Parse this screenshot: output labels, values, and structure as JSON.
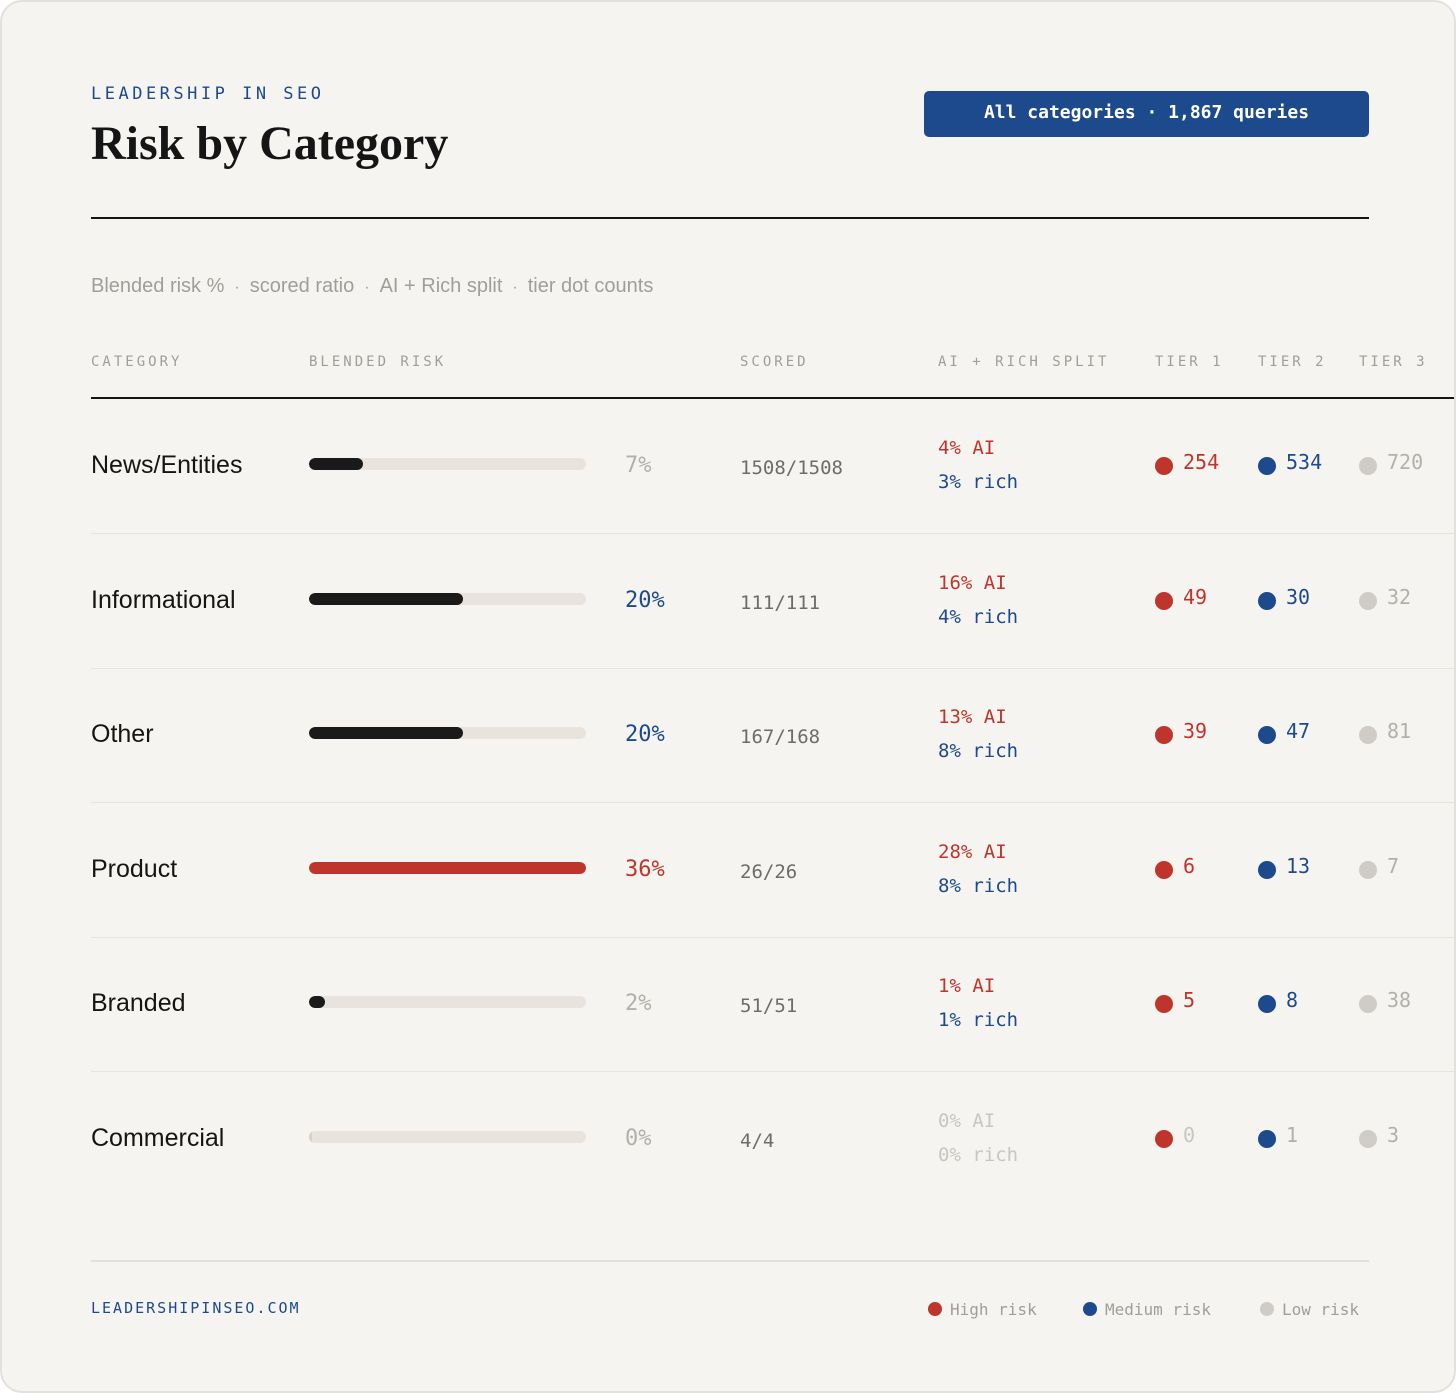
{
  "header": {
    "brand": "LEADERSHIP IN SEO",
    "title": "Risk by Category",
    "filter_pill": "All categories · 1,867 queries"
  },
  "subtitle": {
    "parts": [
      "Blended risk %",
      "scored ratio",
      "AI + Rich split",
      "tier dot counts"
    ],
    "separator": "·"
  },
  "columns": {
    "category": "CATEGORY",
    "blended_risk": "BLENDED RISK",
    "scored": "SCORED",
    "split": "AI + RICH SPLIT",
    "tier1": "TIER 1",
    "tier2": "TIER 2",
    "tier3": "TIER 3"
  },
  "colors": {
    "high": "#c0352b",
    "medium": "#1c4a8c",
    "low": "#cfccc7",
    "bar_default": "#1a1a1a",
    "bar_highlight": "#c0352b",
    "muted": "#b3b0ab"
  },
  "chart_data": {
    "type": "table",
    "bar_max_percent": 36,
    "rows": [
      {
        "category": "News/Entities",
        "blended_risk": "7%",
        "blended_value": 7,
        "scored": "1508/1508",
        "ai": "4% AI",
        "rich": "3% rich",
        "tier1": "254",
        "tier2": "534",
        "tier3": "720"
      },
      {
        "category": "Informational",
        "blended_risk": "20%",
        "blended_value": 20,
        "scored": "111/111",
        "ai": "16% AI",
        "rich": "4% rich",
        "tier1": "49",
        "tier2": "30",
        "tier3": "32"
      },
      {
        "category": "Other",
        "blended_risk": "20%",
        "blended_value": 20,
        "scored": "167/168",
        "ai": "13% AI",
        "rich": "8% rich",
        "tier1": "39",
        "tier2": "47",
        "tier3": "81"
      },
      {
        "category": "Product",
        "blended_risk": "36%",
        "blended_value": 36,
        "scored": "26/26",
        "ai": "28% AI",
        "rich": "8% rich",
        "tier1": "6",
        "tier2": "13",
        "tier3": "7"
      },
      {
        "category": "Branded",
        "blended_risk": "2%",
        "blended_value": 2,
        "scored": "51/51",
        "ai": "1% AI",
        "rich": "1% rich",
        "tier1": "5",
        "tier2": "8",
        "tier3": "38"
      },
      {
        "category": "Commercial",
        "blended_risk": "0%",
        "blended_value": 0,
        "scored": "4/4",
        "ai": "0% AI",
        "rich": "0% rich",
        "tier1": "0",
        "tier2": "1",
        "tier3": "3"
      }
    ]
  },
  "footer": {
    "site": "LEADERSHIPINSEO.COM",
    "legend": [
      "High risk",
      "Medium risk",
      "Low risk"
    ]
  }
}
